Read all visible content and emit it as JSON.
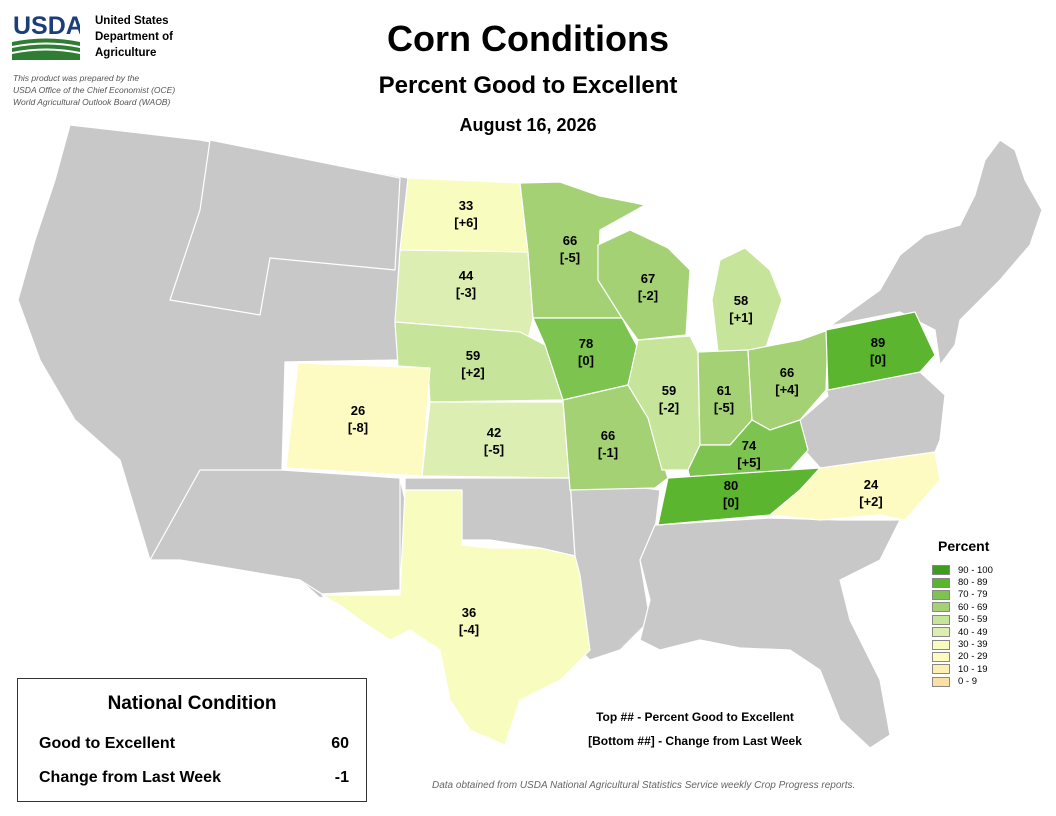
{
  "header": {
    "logo_text": "USDA",
    "agency_lines": [
      "United States",
      "Department of",
      "Agriculture"
    ],
    "prepared_lines": [
      "This product was prepared by the",
      "USDA Office of the Chief Economist (OCE)",
      "World Agricultural Outlook Board (WAOB)"
    ]
  },
  "title": "Corn Conditions",
  "subtitle": "Percent Good to Excellent",
  "date": "August 16, 2026",
  "colors": {
    "no_data": "#c8c8c8",
    "border": "#ffffff"
  },
  "legend": {
    "title": "Percent",
    "items": [
      {
        "label": "90 - 100",
        "color": "#3c9e1c"
      },
      {
        "label": "80 - 89",
        "color": "#5bb52e"
      },
      {
        "label": "70 - 79",
        "color": "#7cc350"
      },
      {
        "label": "60 - 69",
        "color": "#a3d174"
      },
      {
        "label": "50 - 59",
        "color": "#c6e49a"
      },
      {
        "label": "40 - 49",
        "color": "#ddeeb2"
      },
      {
        "label": "30 - 39",
        "color": "#f8fcbe"
      },
      {
        "label": "20 - 29",
        "color": "#fdfac2"
      },
      {
        "label": "10 - 19",
        "color": "#fcefb6"
      },
      {
        "label": "0 - 9",
        "color": "#fbe0a6"
      }
    ]
  },
  "states": [
    {
      "code": "ND",
      "value": 33,
      "change": "[+6]"
    },
    {
      "code": "SD",
      "value": 44,
      "change": "[-3]"
    },
    {
      "code": "NE",
      "value": 59,
      "change": "[+2]"
    },
    {
      "code": "KS",
      "value": 42,
      "change": "[-5]"
    },
    {
      "code": "CO",
      "value": 26,
      "change": "[-8]"
    },
    {
      "code": "TX",
      "value": 36,
      "change": "[-4]"
    },
    {
      "code": "MN",
      "value": 66,
      "change": "[-5]"
    },
    {
      "code": "IA",
      "value": 78,
      "change": "[0]"
    },
    {
      "code": "MO",
      "value": 66,
      "change": "[-1]"
    },
    {
      "code": "WI",
      "value": 67,
      "change": "[-2]"
    },
    {
      "code": "IL",
      "value": 59,
      "change": "[-2]"
    },
    {
      "code": "MI",
      "value": 58,
      "change": "[+1]"
    },
    {
      "code": "IN",
      "value": 61,
      "change": "[-5]"
    },
    {
      "code": "OH",
      "value": 66,
      "change": "[+4]"
    },
    {
      "code": "KY",
      "value": 74,
      "change": "[+5]"
    },
    {
      "code": "TN",
      "value": 80,
      "change": "[0]"
    },
    {
      "code": "NC",
      "value": 24,
      "change": "[+2]"
    },
    {
      "code": "PA",
      "value": 89,
      "change": "[0]"
    }
  ],
  "national": {
    "title": "National Condition",
    "rows": [
      {
        "label": "Good to Excellent",
        "value": "60"
      },
      {
        "label": "Change from Last Week",
        "value": "-1"
      }
    ]
  },
  "key_lines": [
    "Top ## - Percent Good to Excellent",
    "[Bottom ##] - Change from Last Week"
  ],
  "source": "Data obtained from USDA National Agricultural Statistics Service weekly Crop Progress reports."
}
